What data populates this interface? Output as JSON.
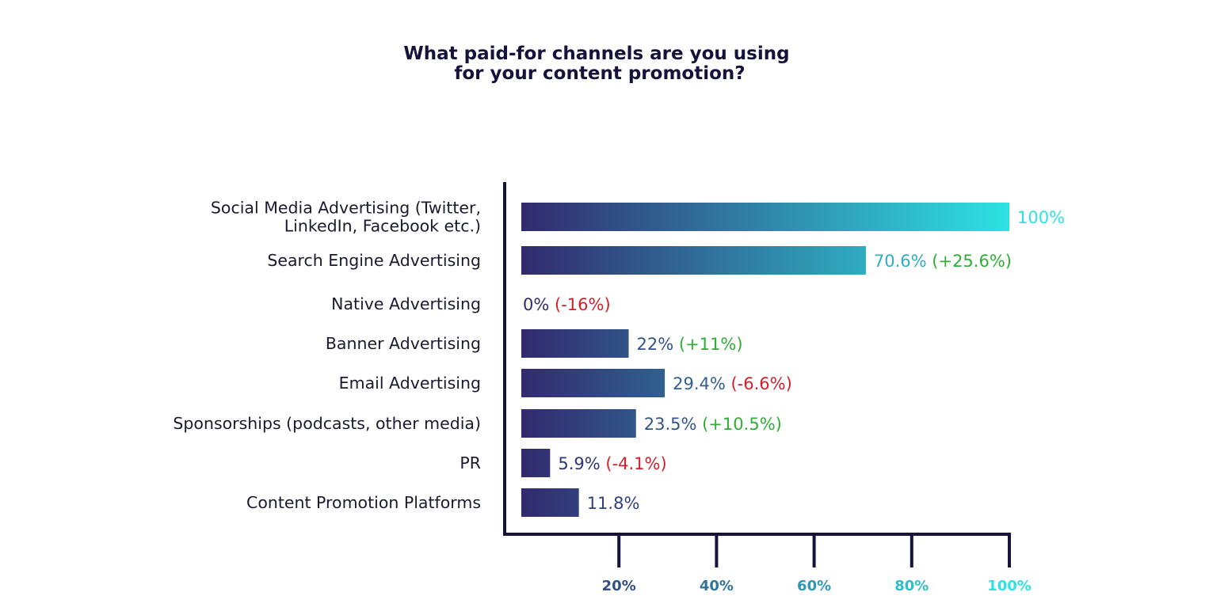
{
  "chart_data": {
    "type": "bar",
    "orientation": "horizontal",
    "title": [
      "What paid-for channels are you using",
      "for your content promotion?"
    ],
    "categories": [
      [
        "Social Media Advertising (Twitter,",
        "LinkedIn, Facebook etc.)"
      ],
      [
        "Search Engine Advertising"
      ],
      [
        "Native Advertising"
      ],
      [
        "Banner Advertising"
      ],
      [
        "Email Advertising"
      ],
      [
        "Sponsorships (podcasts, other media)"
      ],
      [
        "PR"
      ],
      [
        "Content Promotion Platforms"
      ]
    ],
    "values": [
      100,
      70.6,
      0,
      22,
      29.4,
      23.5,
      5.9,
      11.8
    ],
    "value_labels": [
      "100%",
      "70.6%",
      "0%",
      "22%",
      "29.4%",
      "23.5%",
      "5.9%",
      "11.8%"
    ],
    "change_labels": [
      "",
      "(+25.6%)",
      "(-16%)",
      "(+11%)",
      "(-6.6%)",
      "(+10.5%)",
      "(-4.1%)",
      ""
    ],
    "change_direction": [
      "",
      "up",
      "down",
      "up",
      "down",
      "up",
      "down",
      ""
    ],
    "x_ticks": [
      20,
      40,
      60,
      80,
      100
    ],
    "x_tick_labels": [
      "20%",
      "40%",
      "60%",
      "80%",
      "100%"
    ],
    "xlim": [
      0,
      100
    ],
    "grid": false,
    "legend": "none"
  },
  "colors": {
    "bar_start": "#322a6e",
    "bar_end": "#2ee2e2",
    "axis": "#15133a",
    "up": "#2fae37",
    "down": "#d2202a"
  }
}
